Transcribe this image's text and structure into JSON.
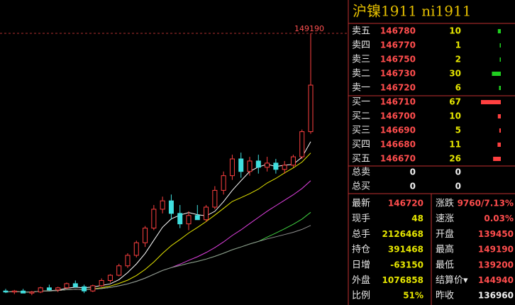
{
  "header": {
    "title": "沪镍1911 ni1911"
  },
  "chart": {
    "type": "candlestick",
    "high_label": 149190,
    "ylim": [
      136400,
      149190
    ],
    "up_color": "#ff4040",
    "down_color": "#40e0e0",
    "ma_lines": [
      {
        "window": 5,
        "color": "#ffffff"
      },
      {
        "window": 10,
        "color": "#e6e600"
      },
      {
        "window": 20,
        "color": "#e040e0"
      },
      {
        "window": 30,
        "color": "#40d040"
      },
      {
        "window": 60,
        "color": "#909090"
      }
    ],
    "candles": [
      [
        136900,
        137000,
        136800,
        136850
      ],
      [
        136850,
        136950,
        136750,
        136900
      ],
      [
        136900,
        137000,
        136800,
        136800
      ],
      [
        136800,
        136900,
        136700,
        136850
      ],
      [
        136850,
        137100,
        136800,
        137050
      ],
      [
        137050,
        137200,
        136900,
        136950
      ],
      [
        136950,
        137100,
        136850,
        137050
      ],
      [
        137050,
        137300,
        137000,
        137250
      ],
      [
        137250,
        137400,
        137050,
        137100
      ],
      [
        137100,
        137200,
        136800,
        136900
      ],
      [
        136900,
        137200,
        136850,
        137150
      ],
      [
        137150,
        137500,
        137100,
        137400
      ],
      [
        137400,
        137700,
        137300,
        137650
      ],
      [
        137650,
        138200,
        137600,
        138100
      ],
      [
        138100,
        138700,
        138000,
        138600
      ],
      [
        138600,
        139300,
        138500,
        139200
      ],
      [
        139200,
        140000,
        139000,
        139900
      ],
      [
        139900,
        141000,
        139800,
        140800
      ],
      [
        140800,
        141400,
        140600,
        141200
      ],
      [
        141200,
        141500,
        140300,
        140600
      ],
      [
        140600,
        141000,
        139900,
        140100
      ],
      [
        140100,
        140700,
        139800,
        140500
      ],
      [
        140500,
        141000,
        140300,
        140300
      ],
      [
        140300,
        141000,
        140200,
        140900
      ],
      [
        140900,
        141900,
        140800,
        141700
      ],
      [
        141700,
        142600,
        141500,
        142400
      ],
      [
        142400,
        143400,
        142200,
        143200
      ],
      [
        143200,
        143500,
        142300,
        142600
      ],
      [
        142600,
        143300,
        142400,
        143100
      ],
      [
        143100,
        143400,
        142500,
        142800
      ],
      [
        142800,
        143300,
        142600,
        143000
      ],
      [
        143000,
        143200,
        142500,
        142700
      ],
      [
        142700,
        143100,
        142500,
        142900
      ],
      [
        142900,
        143400,
        142800,
        143300
      ],
      [
        143300,
        144600,
        143200,
        144500
      ],
      [
        144500,
        149190,
        144400,
        146720
      ]
    ]
  },
  "order_book": {
    "asks": [
      {
        "label": "卖五",
        "price": 146780,
        "volume": 10
      },
      {
        "label": "卖四",
        "price": 146770,
        "volume": 1
      },
      {
        "label": "卖三",
        "price": 146750,
        "volume": 2
      },
      {
        "label": "卖二",
        "price": 146730,
        "volume": 30
      },
      {
        "label": "卖一",
        "price": 146720,
        "volume": 6
      }
    ],
    "bids": [
      {
        "label": "买一",
        "price": 146710,
        "volume": 67
      },
      {
        "label": "买二",
        "price": 146700,
        "volume": 10
      },
      {
        "label": "买三",
        "price": 146690,
        "volume": 5
      },
      {
        "label": "买四",
        "price": 146680,
        "volume": 11
      },
      {
        "label": "买五",
        "price": 146670,
        "volume": 26
      }
    ],
    "totals": [
      {
        "label": "总卖",
        "a": 0,
        "b": 0
      },
      {
        "label": "总买",
        "a": 0,
        "b": 0
      }
    ]
  },
  "stats": [
    {
      "l1": "最新",
      "v1": "146720",
      "l2": "涨跌",
      "v2": "9760/7.13%"
    },
    {
      "l1": "现手",
      "v1": "48",
      "l2": "速涨",
      "v2": "0.03%"
    },
    {
      "l1": "总手",
      "v1": "2126468",
      "l2": "开盘",
      "v2": "139450"
    },
    {
      "l1": "持仓",
      "v1": "391468",
      "l2": "最高",
      "v2": "149190"
    },
    {
      "l1": "日增",
      "v1": "-63150",
      "l2": "最低",
      "v2": "139200"
    },
    {
      "l1": "外盘",
      "v1": "1076858",
      "l2": "结算价▾",
      "v2": "144940"
    },
    {
      "l1": "比例",
      "v1": "51%",
      "l2": "昨收",
      "v2": "136960"
    }
  ]
}
